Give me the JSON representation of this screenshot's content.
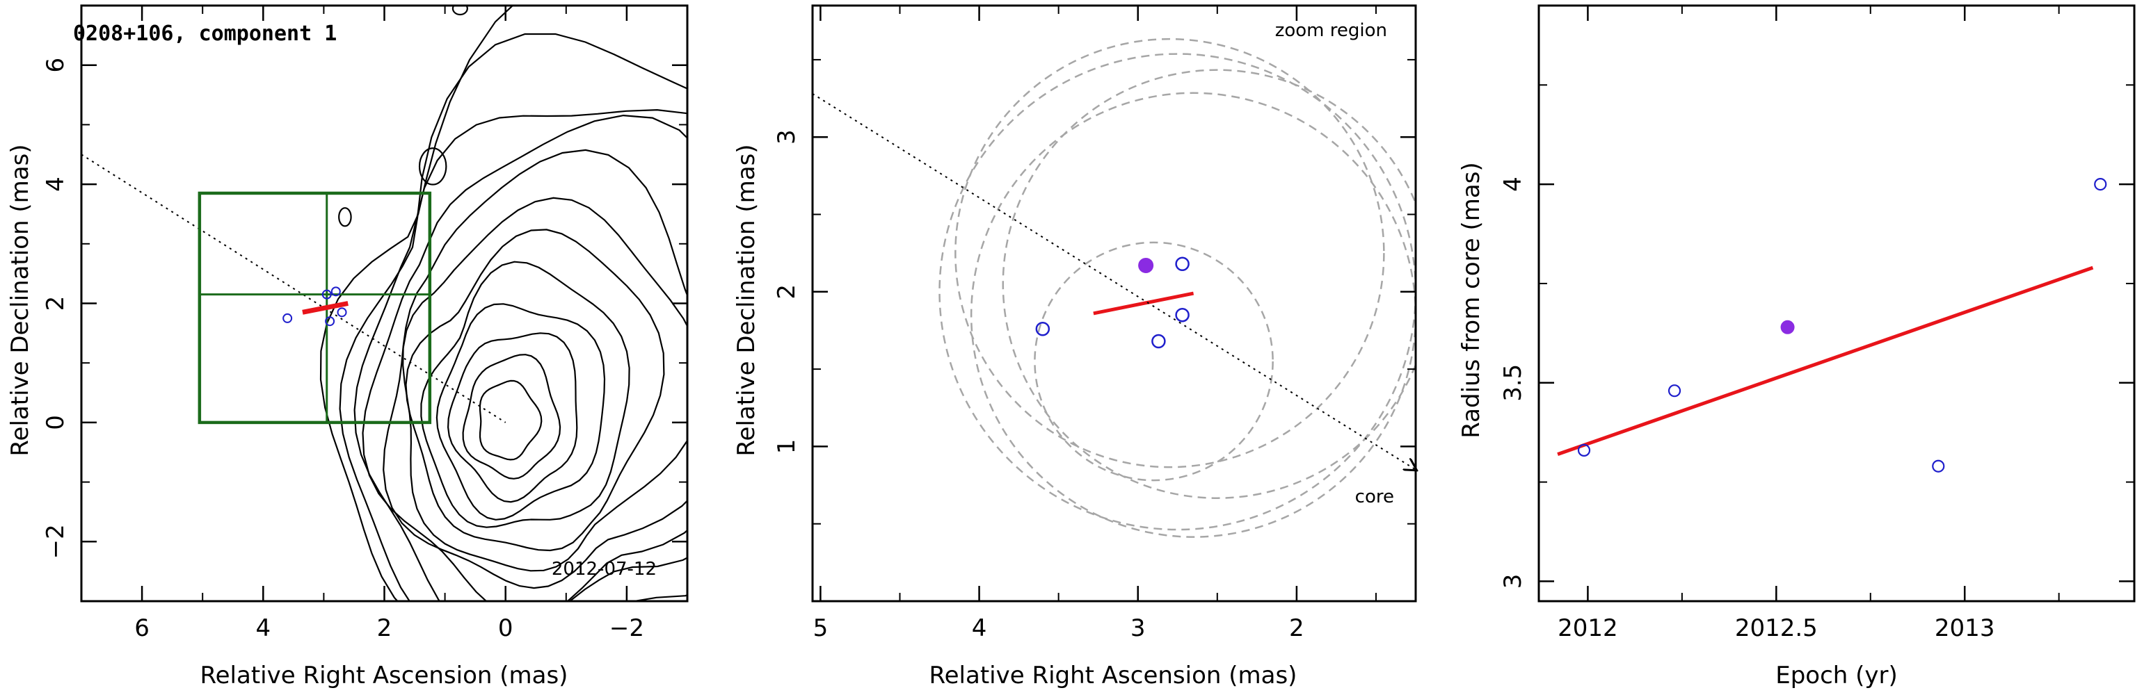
{
  "colors": {
    "axis": "#000000",
    "contour": "#000000",
    "box": "#1b6b1b",
    "fit": "#e8141a",
    "point": "#1f1fcc",
    "highlight": "#8a2be2",
    "circle": "#a6a6a6"
  },
  "chart_data": [
    {
      "type": "contour-map",
      "title": "0208+106, component 1",
      "date_label": "2012-07-12",
      "xlabel": "Relative Right Ascension (mas)",
      "ylabel": "Relative Declination (mas)",
      "xlim": [
        7,
        -3
      ],
      "ylim": [
        -3,
        7
      ],
      "xticks": [
        "6",
        "4",
        "2",
        "0",
        "−2"
      ],
      "xtick_values": [
        6,
        4,
        2,
        0,
        -2
      ],
      "yticks": [
        "−2",
        "0",
        "2",
        "4",
        "6"
      ],
      "ytick_values": [
        -2,
        0,
        2,
        4,
        6
      ],
      "contour_center": [
        0,
        0
      ],
      "contour_levels": 12,
      "zoom_box": {
        "x": [
          1.25,
          5.05
        ],
        "y": [
          0,
          3.85
        ]
      },
      "zoom_box_crosshair": {
        "x": 2.95,
        "y": 2.15
      },
      "jet_direction_line": {
        "x": [
          7,
          0
        ],
        "y": [
          4.5,
          0
        ]
      },
      "fit_segment": {
        "x": [
          3.35,
          2.6
        ],
        "y": [
          1.85,
          2.0
        ]
      },
      "points": {
        "x": [
          3.6,
          2.9,
          2.8,
          2.7,
          2.95
        ],
        "y": [
          1.75,
          1.7,
          2.2,
          1.85,
          2.15
        ]
      }
    },
    {
      "type": "scatter",
      "label_top": "zoom region",
      "label_core": "core",
      "xlabel": "Relative Right Ascension (mas)",
      "ylabel": "Relative Declination (mas)",
      "xlim": [
        5.05,
        1.25
      ],
      "ylim": [
        0,
        3.85
      ],
      "xticks": [
        "5",
        "4",
        "3",
        "2"
      ],
      "xtick_values": [
        5,
        4,
        3,
        2
      ],
      "yticks": [
        "1",
        "2",
        "3"
      ],
      "ytick_values": [
        1,
        2,
        3
      ],
      "jet_direction_line": {
        "x": [
          5.05,
          1.25
        ],
        "y": [
          3.28,
          0.85
        ]
      },
      "fit_segment": {
        "x": [
          3.28,
          2.65
        ],
        "y": [
          1.86,
          1.99
        ]
      },
      "points": {
        "x": [
          3.6,
          2.87,
          2.72,
          2.72
        ],
        "y": [
          1.76,
          1.68,
          2.18,
          1.85
        ]
      },
      "highlight_point": {
        "x": 2.95,
        "y": 2.17
      },
      "circles": [
        {
          "cx": 2.75,
          "cy": 2.0,
          "r": 1.5
        },
        {
          "cx": 2.8,
          "cy": 2.25,
          "r": 1.35
        },
        {
          "cx": 2.65,
          "cy": 1.85,
          "r": 1.4
        },
        {
          "cx": 2.5,
          "cy": 2.05,
          "r": 1.35
        },
        {
          "cx": 2.9,
          "cy": 1.55,
          "r": 0.75
        }
      ]
    },
    {
      "type": "scatter",
      "xlabel": "Epoch (yr)",
      "ylabel": "Radius from core (mas)",
      "xlim": [
        11.87,
        13.45
      ],
      "ylim": [
        2.95,
        4.45
      ],
      "xticks": [
        "2012",
        "2012.5",
        "2013"
      ],
      "xtick_values": [
        12.0,
        12.5,
        13.0
      ],
      "yticks": [
        "3",
        "3.5",
        "4"
      ],
      "ytick_values": [
        3.0,
        3.5,
        4.0
      ],
      "epoch_offset": 2000,
      "points": {
        "x": [
          11.99,
          12.23,
          12.93,
          13.36
        ],
        "y": [
          3.33,
          3.48,
          3.29,
          4.0
        ]
      },
      "highlight_point": {
        "x": 12.53,
        "y": 3.64
      },
      "fit_line": {
        "x": [
          11.92,
          13.34
        ],
        "y": [
          3.32,
          3.79
        ]
      }
    }
  ]
}
